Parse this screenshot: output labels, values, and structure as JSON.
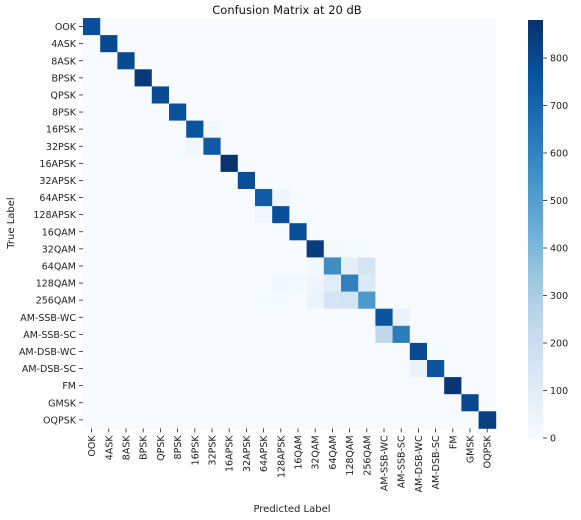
{
  "chart_data": {
    "type": "heatmap",
    "title": "Confusion Matrix at 20 dB",
    "xlabel": "Predicted Label",
    "ylabel": "True Label",
    "labels": [
      "OOK",
      "4ASK",
      "8ASK",
      "BPSK",
      "QPSK",
      "8PSK",
      "16PSK",
      "32PSK",
      "16APSK",
      "32APSK",
      "64APSK",
      "128APSK",
      "16QAM",
      "32QAM",
      "64QAM",
      "128QAM",
      "256QAM",
      "AM-SSB-WC",
      "AM-SSB-SC",
      "AM-DSB-WC",
      "AM-DSB-SC",
      "FM",
      "GMSK",
      "OQPSK"
    ],
    "colorbar": {
      "min": 0,
      "max": 880,
      "ticks": [
        0,
        100,
        200,
        300,
        400,
        500,
        600,
        700,
        800
      ]
    },
    "colormap": [
      "#f7fbff",
      "#deebf7",
      "#c6dbef",
      "#9ecae1",
      "#6baed6",
      "#4292c6",
      "#2171b5",
      "#08519c",
      "#08306b"
    ],
    "cells": [
      [
        0,
        0,
        780
      ],
      [
        1,
        1,
        800
      ],
      [
        2,
        2,
        790
      ],
      [
        3,
        3,
        850
      ],
      [
        4,
        4,
        790
      ],
      [
        5,
        5,
        770
      ],
      [
        6,
        6,
        760
      ],
      [
        6,
        7,
        25
      ],
      [
        7,
        6,
        30
      ],
      [
        7,
        7,
        740
      ],
      [
        8,
        8,
        870
      ],
      [
        9,
        9,
        780
      ],
      [
        10,
        10,
        730
      ],
      [
        10,
        11,
        40
      ],
      [
        11,
        10,
        30
      ],
      [
        11,
        11,
        780
      ],
      [
        12,
        12,
        780
      ],
      [
        13,
        13,
        840
      ],
      [
        13,
        14,
        15
      ],
      [
        13,
        15,
        10
      ],
      [
        14,
        13,
        20
      ],
      [
        14,
        14,
        560
      ],
      [
        14,
        15,
        80
      ],
      [
        14,
        16,
        160
      ],
      [
        15,
        11,
        20
      ],
      [
        15,
        12,
        15
      ],
      [
        15,
        13,
        40
      ],
      [
        15,
        14,
        100
      ],
      [
        15,
        15,
        610
      ],
      [
        15,
        16,
        120
      ],
      [
        16,
        10,
        10
      ],
      [
        16,
        11,
        10
      ],
      [
        16,
        13,
        50
      ],
      [
        16,
        14,
        150
      ],
      [
        16,
        15,
        160
      ],
      [
        16,
        16,
        520
      ],
      [
        17,
        17,
        760
      ],
      [
        17,
        18,
        60
      ],
      [
        18,
        17,
        240
      ],
      [
        18,
        18,
        620
      ],
      [
        19,
        19,
        790
      ],
      [
        19,
        20,
        10
      ],
      [
        20,
        19,
        60
      ],
      [
        20,
        20,
        760
      ],
      [
        21,
        21,
        860
      ],
      [
        22,
        22,
        800
      ],
      [
        23,
        23,
        830
      ]
    ]
  }
}
